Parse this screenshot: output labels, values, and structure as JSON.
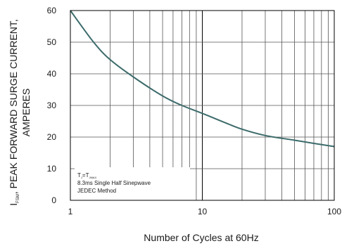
{
  "chart_data": {
    "type": "line",
    "xlabel": "Number of Cycles at 60Hz",
    "ylabel": {
      "line1_prefix": "I",
      "line1_subscript": "FSM",
      "line1_rest": ", PEAK FORWARD SURGE CURRENT,",
      "line2": "AMPERES"
    },
    "x_scale": "log",
    "xlim": [
      1,
      100
    ],
    "ylim": [
      0,
      60
    ],
    "x_ticks": [
      1,
      10,
      100
    ],
    "x_tick_labels": [
      "1",
      "10",
      "100"
    ],
    "y_ticks": [
      0,
      10,
      20,
      30,
      40,
      50,
      60
    ],
    "y_tick_labels": [
      "0",
      "10",
      "20",
      "30",
      "40",
      "50",
      "60"
    ],
    "grid": "on (log decades vertical, 10-unit horizontal)",
    "line_color": "#3d6b6b",
    "series": [
      {
        "x": [
          1,
          1.5,
          2,
          3,
          5,
          7,
          10,
          15,
          20,
          30,
          50,
          70,
          100
        ],
        "y": [
          60,
          50,
          44.5,
          39,
          33,
          30,
          27.5,
          24.5,
          22.5,
          20.5,
          19,
          18,
          17
        ]
      }
    ],
    "annotation": {
      "line1": {
        "a": "T",
        "a_sub": "J",
        "eq": "=T",
        "b_sub": "JMAX"
      },
      "line2": "8.3ms Single Half  Sinepwave",
      "line3": "JEDEC Method"
    }
  }
}
